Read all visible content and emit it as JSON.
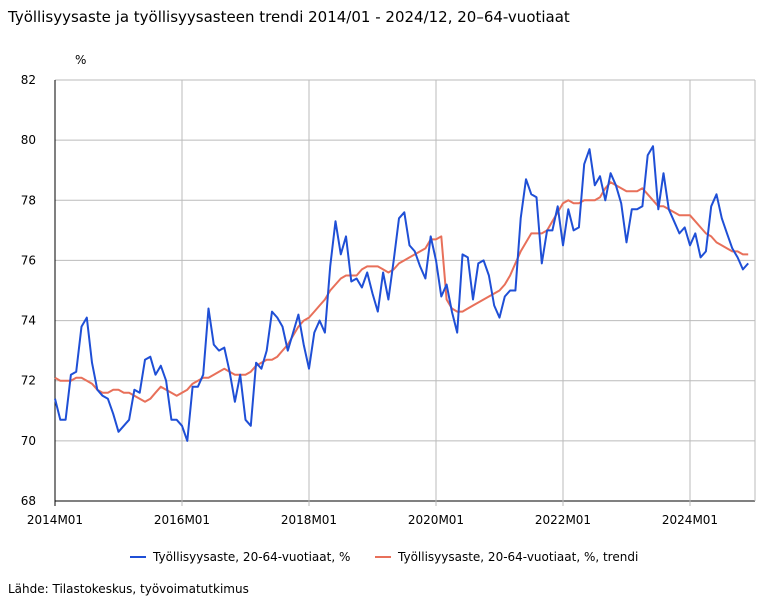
{
  "chart_data": {
    "type": "line",
    "title": "Työllisyysaste ja työllisyysasteen trendi 2014/01 - 2024/12, 20–64-vuotiaat",
    "ylabel": "%",
    "xlabel": "",
    "ylim": [
      68,
      82
    ],
    "yticks": [
      "68",
      "70",
      "72",
      "74",
      "76",
      "78",
      "80",
      "82"
    ],
    "xticks": [
      {
        "label": "2014M01",
        "index": 0
      },
      {
        "label": "2016M01",
        "index": 24
      },
      {
        "label": "2018M01",
        "index": 48
      },
      {
        "label": "2020M01",
        "index": 72
      },
      {
        "label": "2022M01",
        "index": 96
      },
      {
        "label": "2024M01",
        "index": 120
      }
    ],
    "x_range": "2014M01 - 2024M12",
    "grid": true,
    "legend_position": "bottom",
    "series": [
      {
        "name": "Työllisyysaste, 20-64-vuotiaat, %",
        "color": "#1f4fd6",
        "values": [
          71.4,
          70.7,
          70.7,
          72.2,
          72.3,
          73.8,
          74.1,
          72.6,
          71.7,
          71.5,
          71.4,
          70.9,
          70.3,
          70.5,
          70.7,
          71.7,
          71.6,
          72.7,
          72.8,
          72.2,
          72.5,
          72.0,
          70.7,
          70.7,
          70.5,
          70.0,
          71.8,
          71.8,
          72.2,
          74.4,
          73.2,
          73.0,
          73.1,
          72.3,
          71.3,
          72.2,
          70.7,
          70.5,
          72.6,
          72.4,
          73.0,
          74.3,
          74.1,
          73.8,
          73.0,
          73.6,
          74.2,
          73.2,
          72.4,
          73.6,
          74.0,
          73.6,
          75.8,
          77.3,
          76.2,
          76.8,
          75.3,
          75.4,
          75.1,
          75.6,
          74.9,
          74.3,
          75.6,
          74.7,
          76.0,
          77.4,
          77.6,
          76.5,
          76.3,
          75.8,
          75.4,
          76.8,
          76.0,
          74.8,
          75.2,
          74.3,
          73.6,
          76.2,
          76.1,
          74.7,
          75.9,
          76.0,
          75.5,
          74.5,
          74.1,
          74.8,
          75.0,
          75.0,
          77.4,
          78.7,
          78.2,
          78.1,
          75.9,
          77.0,
          77.0,
          77.8,
          76.5,
          77.7,
          77.0,
          77.1,
          79.2,
          79.7,
          78.5,
          78.8,
          78.0,
          78.9,
          78.5,
          77.9,
          76.6,
          77.7,
          77.7,
          77.8,
          79.5,
          79.8,
          77.7,
          78.9,
          77.7,
          77.3,
          76.9,
          77.1,
          76.5,
          76.9,
          76.1,
          76.3,
          77.8,
          78.2,
          77.4,
          76.9,
          76.4,
          76.1,
          75.7,
          75.9
        ]
      },
      {
        "name": "Työllisyysaste, 20-64-vuotiaat, %, trendi",
        "color": "#e8705a",
        "values": [
          72.1,
          72.0,
          72.0,
          72.0,
          72.1,
          72.1,
          72.0,
          71.9,
          71.7,
          71.6,
          71.6,
          71.7,
          71.7,
          71.6,
          71.6,
          71.5,
          71.4,
          71.3,
          71.4,
          71.6,
          71.8,
          71.7,
          71.6,
          71.5,
          71.6,
          71.7,
          71.9,
          72.0,
          72.1,
          72.1,
          72.2,
          72.3,
          72.4,
          72.3,
          72.2,
          72.2,
          72.2,
          72.3,
          72.5,
          72.6,
          72.7,
          72.7,
          72.8,
          73.0,
          73.2,
          73.5,
          73.8,
          74.0,
          74.1,
          74.3,
          74.5,
          74.7,
          75.0,
          75.2,
          75.4,
          75.5,
          75.5,
          75.5,
          75.7,
          75.8,
          75.8,
          75.8,
          75.7,
          75.6,
          75.7,
          75.9,
          76.0,
          76.1,
          76.2,
          76.3,
          76.4,
          76.7,
          76.7,
          76.8,
          74.7,
          74.4,
          74.3,
          74.3,
          74.4,
          74.5,
          74.6,
          74.7,
          74.8,
          74.9,
          75.0,
          75.2,
          75.5,
          75.9,
          76.3,
          76.6,
          76.9,
          76.9,
          76.9,
          77.0,
          77.3,
          77.6,
          77.9,
          78.0,
          77.9,
          77.9,
          78.0,
          78.0,
          78.0,
          78.1,
          78.4,
          78.6,
          78.5,
          78.4,
          78.3,
          78.3,
          78.3,
          78.4,
          78.2,
          78.0,
          77.8,
          77.8,
          77.7,
          77.6,
          77.5,
          77.5,
          77.5,
          77.3,
          77.1,
          76.9,
          76.8,
          76.6,
          76.5,
          76.4,
          76.3,
          76.3,
          76.2,
          76.2
        ]
      }
    ]
  },
  "source": "Lähde: Tilastokeskus, työvoimatutkimus"
}
